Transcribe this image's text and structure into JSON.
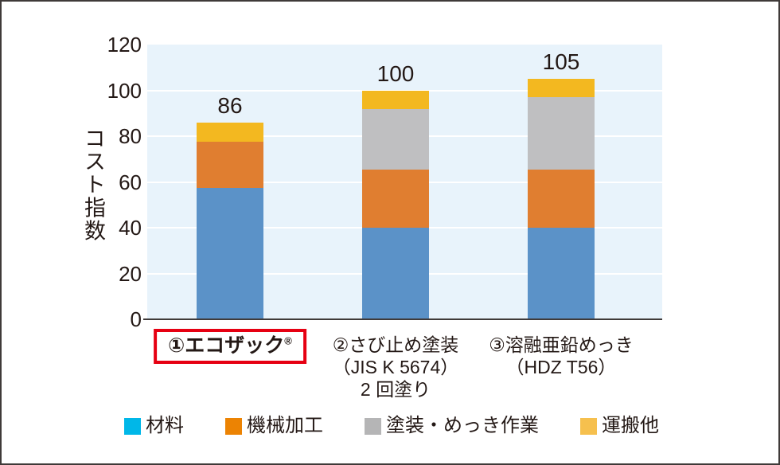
{
  "frame": {
    "border_color": "#3f3a39",
    "background": "#ffffff"
  },
  "chart_data": {
    "type": "bar",
    "stacked": true,
    "title": "",
    "ylabel": "コスト指数",
    "xlabel": "",
    "ylim": [
      0,
      120
    ],
    "yticks": [
      0,
      20,
      40,
      60,
      80,
      100,
      120
    ],
    "grid": "horizontal",
    "gridline_color": "#ffffff",
    "plot_background": "#e8f3fb",
    "axis_color": "#3f3a39",
    "text_color": "#231815",
    "legend_position": "bottom",
    "categories": [
      {
        "lines": [
          "①エコザック"
        ],
        "sup": "®",
        "highlighted": true,
        "highlight_border": "#e60012"
      },
      {
        "lines": [
          "②さび止め塗装",
          "（JIS K 5674）",
          "2 回塗り"
        ],
        "highlighted": false
      },
      {
        "lines": [
          "③溶融亜鉛めっき",
          "（HDZ T56）"
        ],
        "highlighted": false
      }
    ],
    "totals": [
      86,
      100,
      105
    ],
    "series": [
      {
        "name": "材料",
        "bar_color": "#5b92c8",
        "legend_color": "#00b7e8",
        "values": [
          57.5,
          40,
          40
        ]
      },
      {
        "name": "機械加工",
        "bar_color": "#e07e30",
        "legend_color": "#ec8303",
        "values": [
          20,
          25.5,
          25.5
        ]
      },
      {
        "name": "塗装・めっき作業",
        "bar_color": "#bfbfc1",
        "legend_color": "#b5b5b6",
        "values": [
          0,
          26.5,
          31.5
        ]
      },
      {
        "name": "運搬他",
        "bar_color": "#f3b820",
        "legend_color": "#f6c04e",
        "values": [
          8.5,
          8,
          8
        ]
      }
    ]
  }
}
